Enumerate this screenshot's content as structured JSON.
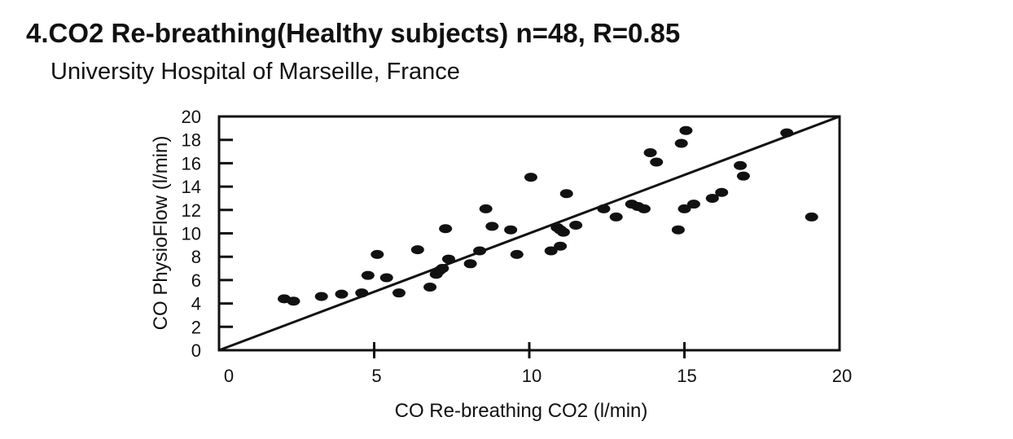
{
  "title": "4.CO2 Re-breathing(Healthy subjects) n=48, R=0.85",
  "subtitle": "University Hospital of Marseille, France",
  "chart_data": {
    "type": "scatter",
    "title": "4.CO2 Re-breathing(Healthy subjects) n=48, R=0.85",
    "subtitle": "University Hospital of Marseille, France",
    "xlabel": "CO  Re-breathing CO2  (l/min)",
    "ylabel": "CO PhysioFlow (l/min)",
    "xlim": [
      0,
      20
    ],
    "ylim": [
      0,
      20
    ],
    "xticks": [
      0,
      5,
      10,
      15,
      20
    ],
    "yticks": [
      0,
      2,
      4,
      6,
      8,
      10,
      12,
      14,
      16,
      18,
      20
    ],
    "grid": false,
    "identity_line": [
      [
        0,
        0
      ],
      [
        20,
        20
      ]
    ],
    "marker_color": "#111111",
    "points": [
      [
        2.1,
        4.4
      ],
      [
        2.4,
        4.2
      ],
      [
        3.3,
        4.6
      ],
      [
        3.95,
        4.8
      ],
      [
        4.6,
        4.9
      ],
      [
        4.8,
        6.4
      ],
      [
        5.1,
        8.2
      ],
      [
        5.4,
        6.2
      ],
      [
        5.8,
        4.9
      ],
      [
        6.4,
        8.6
      ],
      [
        6.8,
        5.4
      ],
      [
        7.0,
        6.5
      ],
      [
        7.2,
        7.0
      ],
      [
        7.4,
        7.8
      ],
      [
        7.3,
        10.4
      ],
      [
        8.1,
        7.4
      ],
      [
        8.4,
        8.5
      ],
      [
        8.6,
        12.1
      ],
      [
        8.8,
        10.6
      ],
      [
        9.4,
        10.3
      ],
      [
        9.6,
        8.2
      ],
      [
        10.05,
        14.8
      ],
      [
        11.2,
        13.4
      ],
      [
        10.9,
        10.5
      ],
      [
        11.1,
        10.1
      ],
      [
        11.5,
        10.7
      ],
      [
        10.7,
        8.5
      ],
      [
        11.0,
        8.9
      ],
      [
        12.4,
        12.1
      ],
      [
        12.8,
        11.4
      ],
      [
        13.3,
        12.5
      ],
      [
        13.7,
        12.1
      ],
      [
        13.9,
        16.9
      ],
      [
        14.1,
        16.1
      ],
      [
        14.8,
        10.3
      ],
      [
        14.9,
        17.7
      ],
      [
        15.05,
        18.8
      ],
      [
        15.0,
        12.1
      ],
      [
        15.3,
        12.5
      ],
      [
        15.9,
        13.0
      ],
      [
        16.2,
        13.5
      ],
      [
        16.8,
        15.8
      ],
      [
        16.9,
        14.9
      ],
      [
        18.3,
        18.6
      ],
      [
        19.1,
        11.4
      ],
      [
        13.5,
        12.3
      ],
      [
        11.0,
        10.3
      ],
      [
        7.1,
        6.8
      ]
    ]
  }
}
